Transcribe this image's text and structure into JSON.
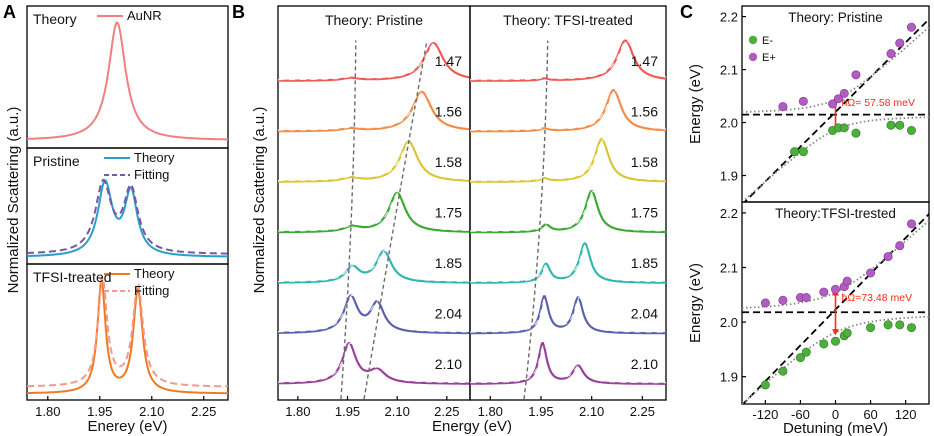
{
  "colors": {
    "axis": "#000000",
    "aunr": "#f08080",
    "theory_blue": "#2a9fc8",
    "fit_purple": "#7c55a8",
    "tfsi_orange": "#f07a22",
    "tfsi_fit": "#f19a8a",
    "dashed_guide": "#6a6a6a",
    "e_minus": "#4caf3c",
    "e_plus": "#b05cc2",
    "fit_dots": "#888888",
    "rabi_arrow": "#ff2a1a"
  },
  "chart_data": [
    {
      "panel": "A",
      "type": "line",
      "xlabel": "Enerey (eV)",
      "ylabel": "Normalized Scattering (a.u.)",
      "xlim": [
        1.74,
        2.32
      ],
      "xticks": [
        "1.80",
        "1.95",
        "2.10",
        "2.25"
      ],
      "xtick_values": [
        1.8,
        1.95,
        2.1,
        2.25
      ],
      "subpanels": [
        {
          "label": "Theory",
          "series": [
            {
              "name": "AuNR",
              "kind": "theory",
              "peaks": [
                {
                  "e0": 2.0,
                  "gamma": 0.06,
                  "amp": 1.0
                }
              ],
              "bg": 0.03
            }
          ]
        },
        {
          "label": "Pristine",
          "series": [
            {
              "name": "Theory",
              "kind": "theory",
              "peaks": [
                {
                  "e0": 1.965,
                  "gamma": 0.05,
                  "amp": 0.78
                },
                {
                  "e0": 2.04,
                  "gamma": 0.045,
                  "amp": 0.68
                }
              ],
              "bg": 0.03
            },
            {
              "name": "Fitting",
              "kind": "fitting",
              "peaks": [
                {
                  "e0": 1.96,
                  "gamma": 0.055,
                  "amp": 0.75
                },
                {
                  "e0": 2.04,
                  "gamma": 0.05,
                  "amp": 0.68
                }
              ],
              "bg": 0.06
            }
          ]
        },
        {
          "label": "TFSI-treated",
          "series": [
            {
              "name": "Theory",
              "kind": "theory",
              "peaks": [
                {
                  "e0": 1.955,
                  "gamma": 0.028,
                  "amp": 1.0
                },
                {
                  "e0": 2.06,
                  "gamma": 0.032,
                  "amp": 0.92
                }
              ],
              "bg": 0.02
            },
            {
              "name": "Fitting",
              "kind": "fitting",
              "peaks": [
                {
                  "e0": 1.958,
                  "gamma": 0.032,
                  "amp": 0.95
                },
                {
                  "e0": 2.06,
                  "gamma": 0.036,
                  "amp": 0.9
                }
              ],
              "bg": 0.08
            }
          ]
        }
      ]
    },
    {
      "panel": "B",
      "type": "line",
      "xlabel": "Energy (eV)",
      "ylabel": "Normalized Scattering (a.u.)",
      "xlim": [
        1.74,
        2.32
      ],
      "xticks": [
        "1.80",
        "1.95",
        "2.10",
        "2.25"
      ],
      "xtick_values": [
        1.8,
        1.95,
        2.1,
        2.25
      ],
      "subpanels": [
        {
          "label": "Theory: Pristine",
          "dashed_guides": [
            {
              "points": [
                [
                  1.93,
                  -0.2
                ],
                [
                  1.97,
                  3.4
                ],
                [
                  1.975,
                  6.9
                ]
              ]
            },
            {
              "points": [
                [
                  2.0,
                  -0.2
                ],
                [
                  2.09,
                  3.3
                ],
                [
                  2.19,
                  6.9
                ]
              ]
            }
          ],
          "curves": [
            {
              "label": "1.47",
              "color": "#f05a55",
              "offset": 6.0,
              "peaks": [
                {
                  "e0": 2.21,
                  "gamma": 0.07,
                  "amp": 0.75
                },
                {
                  "e0": 1.96,
                  "gamma": 0.06,
                  "amp": 0.05
                }
              ],
              "bg": 0.1
            },
            {
              "label": "1.56",
              "color": "#f58b45",
              "offset": 5.0,
              "peaks": [
                {
                  "e0": 2.175,
                  "gamma": 0.07,
                  "amp": 0.78
                },
                {
                  "e0": 1.96,
                  "gamma": 0.06,
                  "amp": 0.05
                }
              ],
              "bg": 0.1
            },
            {
              "label": "1.58",
              "color": "#d9c635",
              "offset": 4.0,
              "peaks": [
                {
                  "e0": 2.135,
                  "gamma": 0.065,
                  "amp": 0.8
                },
                {
                  "e0": 1.96,
                  "gamma": 0.06,
                  "amp": 0.07
                }
              ],
              "bg": 0.1
            },
            {
              "label": "1.75",
              "color": "#3aaa35",
              "offset": 3.0,
              "peaks": [
                {
                  "e0": 2.1,
                  "gamma": 0.06,
                  "amp": 0.78
                },
                {
                  "e0": 1.965,
                  "gamma": 0.06,
                  "amp": 0.1
                }
              ],
              "bg": 0.1
            },
            {
              "label": "1.85",
              "color": "#30b8b0",
              "offset": 2.0,
              "peaks": [
                {
                  "e0": 2.06,
                  "gamma": 0.055,
                  "amp": 0.62
                },
                {
                  "e0": 1.965,
                  "gamma": 0.05,
                  "amp": 0.3
                }
              ],
              "bg": 0.1
            },
            {
              "label": "2.04",
              "color": "#5a62ad",
              "offset": 1.0,
              "peaks": [
                {
                  "e0": 1.96,
                  "gamma": 0.05,
                  "amp": 0.7
                },
                {
                  "e0": 2.04,
                  "gamma": 0.05,
                  "amp": 0.58
                }
              ],
              "bg": 0.1
            },
            {
              "label": "2.10",
              "color": "#9a3f9a",
              "offset": 0.0,
              "peaks": [
                {
                  "e0": 1.955,
                  "gamma": 0.05,
                  "amp": 0.78
                },
                {
                  "e0": 2.04,
                  "gamma": 0.06,
                  "amp": 0.25
                }
              ],
              "bg": 0.1
            }
          ]
        },
        {
          "label": "Theory: TFSI-treated",
          "dashed_guides": [
            {
              "points": [
                [
                  1.9,
                  -0.2
                ],
                [
                  1.96,
                  3.3
                ],
                [
                  1.97,
                  6.9
                ]
              ]
            }
          ],
          "curves": [
            {
              "label": "1.47",
              "color": "#f05a55",
              "offset": 6.0,
              "peaks": [
                {
                  "e0": 2.2,
                  "gamma": 0.06,
                  "amp": 0.8
                },
                {
                  "e0": 1.96,
                  "gamma": 0.03,
                  "amp": 0.04
                }
              ],
              "bg": 0.1
            },
            {
              "label": "1.56",
              "color": "#f58b45",
              "offset": 5.0,
              "peaks": [
                {
                  "e0": 2.165,
                  "gamma": 0.055,
                  "amp": 0.82
                },
                {
                  "e0": 1.96,
                  "gamma": 0.03,
                  "amp": 0.05
                }
              ],
              "bg": 0.1
            },
            {
              "label": "1.58",
              "color": "#d9c635",
              "offset": 4.0,
              "peaks": [
                {
                  "e0": 2.13,
                  "gamma": 0.05,
                  "amp": 0.85
                },
                {
                  "e0": 1.96,
                  "gamma": 0.03,
                  "amp": 0.06
                }
              ],
              "bg": 0.1
            },
            {
              "label": "1.75",
              "color": "#3aaa35",
              "offset": 3.0,
              "peaks": [
                {
                  "e0": 2.1,
                  "gamma": 0.045,
                  "amp": 0.82
                },
                {
                  "e0": 1.965,
                  "gamma": 0.03,
                  "amp": 0.14
                }
              ],
              "bg": 0.1
            },
            {
              "label": "1.85",
              "color": "#30b8b0",
              "offset": 2.0,
              "peaks": [
                {
                  "e0": 2.08,
                  "gamma": 0.04,
                  "amp": 0.78
                },
                {
                  "e0": 1.965,
                  "gamma": 0.03,
                  "amp": 0.36
                }
              ],
              "bg": 0.1
            },
            {
              "label": "2.04",
              "color": "#5a62ad",
              "offset": 1.0,
              "peaks": [
                {
                  "e0": 1.96,
                  "gamma": 0.03,
                  "amp": 0.72
                },
                {
                  "e0": 2.06,
                  "gamma": 0.035,
                  "amp": 0.7
                }
              ],
              "bg": 0.1
            },
            {
              "label": "2.10",
              "color": "#9a3f9a",
              "offset": 0.0,
              "peaks": [
                {
                  "e0": 1.955,
                  "gamma": 0.03,
                  "amp": 0.8
                },
                {
                  "e0": 2.06,
                  "gamma": 0.04,
                  "amp": 0.35
                }
              ],
              "bg": 0.1
            }
          ]
        }
      ]
    },
    {
      "panel": "C",
      "type": "scatter",
      "xlabel": "Detuning (meV)",
      "ylabel": "Energy (eV)",
      "xlim": [
        -160,
        160
      ],
      "xticks": [
        "-120",
        "-60",
        "0",
        "60",
        "120"
      ],
      "xtick_values": [
        -120,
        -60,
        0,
        60,
        120
      ],
      "legend": [
        "E-",
        "E+"
      ],
      "subpanels": [
        {
          "title": "Theory: Pristine",
          "ylim": [
            1.85,
            2.22
          ],
          "yticks": [
            "1.9",
            "2.0",
            "2.1",
            "2.2"
          ],
          "ytick_values": [
            1.9,
            2.0,
            2.1,
            2.2
          ],
          "exciton_energy": 2.015,
          "rabi_label": "ħΩ= 57.58 meV",
          "rabi_splitting_ev": 0.0576,
          "rabi_x": 0,
          "e_minus": [
            [
              -70,
              1.945
            ],
            [
              -55,
              1.945
            ],
            [
              -5,
              1.985
            ],
            [
              5,
              1.99
            ],
            [
              15,
              1.99
            ],
            [
              35,
              1.98
            ],
            [
              95,
              1.995
            ],
            [
              110,
              1.995
            ],
            [
              130,
              1.985
            ]
          ],
          "e_plus": [
            [
              -90,
              2.03
            ],
            [
              -55,
              2.04
            ],
            [
              -5,
              2.035
            ],
            [
              5,
              2.045
            ],
            [
              15,
              2.055
            ],
            [
              35,
              2.09
            ],
            [
              95,
              2.13
            ],
            [
              110,
              2.15
            ],
            [
              130,
              2.18
            ]
          ]
        },
        {
          "title": "Theory:TFSI-trested",
          "ylim": [
            1.85,
            2.22
          ],
          "yticks": [
            "1.9",
            "2.0",
            "2.1",
            "2.2"
          ],
          "ytick_values": [
            1.9,
            2.0,
            2.1,
            2.2
          ],
          "exciton_energy": 2.018,
          "rabi_label": "ħΩ=73.48 meV",
          "rabi_splitting_ev": 0.0735,
          "rabi_x": 0,
          "e_minus": [
            [
              -120,
              1.885
            ],
            [
              -90,
              1.91
            ],
            [
              -60,
              1.935
            ],
            [
              -50,
              1.945
            ],
            [
              -20,
              1.96
            ],
            [
              0,
              1.965
            ],
            [
              15,
              1.975
            ],
            [
              20,
              1.98
            ],
            [
              60,
              1.99
            ],
            [
              90,
              1.995
            ],
            [
              110,
              1.995
            ],
            [
              130,
              1.99
            ]
          ],
          "e_plus": [
            [
              -120,
              2.035
            ],
            [
              -90,
              2.04
            ],
            [
              -60,
              2.045
            ],
            [
              -50,
              2.045
            ],
            [
              -20,
              2.055
            ],
            [
              0,
              2.06
            ],
            [
              15,
              2.065
            ],
            [
              20,
              2.075
            ],
            [
              60,
              2.09
            ],
            [
              90,
              2.12
            ],
            [
              110,
              2.14
            ],
            [
              130,
              2.18
            ]
          ]
        }
      ]
    }
  ]
}
